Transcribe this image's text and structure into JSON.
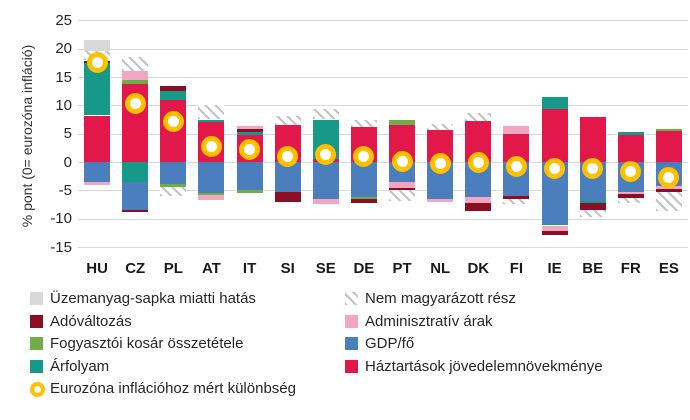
{
  "chart_data": {
    "type": "stacked-bar-with-marker",
    "title": "",
    "ylabel": "% pont (0= eurozóna infláció)",
    "xlabel": "",
    "ylim": [
      -15,
      25
    ],
    "yticks": [
      25,
      20,
      15,
      10,
      5,
      0,
      -5,
      -10,
      -15
    ],
    "grid": "horizontal-light-gray",
    "categories": [
      "HU",
      "CZ",
      "PL",
      "AT",
      "IT",
      "SI",
      "SE",
      "DE",
      "PT",
      "NL",
      "DK",
      "FI",
      "IE",
      "BE",
      "FR",
      "ES"
    ],
    "components": {
      "fuel_cap": {
        "label": "Üzemanyag-sapka miatti hatás",
        "color": "#d9d9d9",
        "style": "solid"
      },
      "unexplained": {
        "label": "Nem magyarázott rész",
        "color": "#c3c3c3",
        "style": "hatched"
      },
      "tax": {
        "label": "Adóváltozás",
        "color": "#8b0f24",
        "style": "solid"
      },
      "admin": {
        "label": "Adminisztratív árak",
        "color": "#f2a6c2",
        "style": "solid"
      },
      "basket": {
        "label": "Fogyasztói kosár összetétele",
        "color": "#70ad47",
        "style": "solid"
      },
      "gdp": {
        "label": "GDP/fő",
        "color": "#4a7ebc",
        "style": "solid"
      },
      "fx": {
        "label": "Árfolyam",
        "color": "#17998a",
        "style": "solid"
      },
      "income": {
        "label": "Háztartások jövedelemnövekménye",
        "color": "#e2184a",
        "style": "solid"
      },
      "diff": {
        "label": "Eurozóna inflációhoz mért különbség",
        "color": "#ffc000",
        "style": "ring-marker"
      }
    },
    "bars": [
      {
        "country": "HU",
        "diff": 17.6,
        "segments": [
          {
            "k": "income",
            "v": 8.2
          },
          {
            "k": "fx",
            "v": 9.3
          },
          {
            "k": "tax",
            "v": 0.4
          },
          {
            "k": "unexplained",
            "v": 1.6
          },
          {
            "k": "fuel_cap",
            "v": 2.1
          },
          {
            "k": "gdp",
            "v": -3.6
          },
          {
            "k": "admin",
            "v": -0.5
          }
        ]
      },
      {
        "country": "CZ",
        "diff": 10.4,
        "segments": [
          {
            "k": "income",
            "v": 13.8
          },
          {
            "k": "basket",
            "v": 0.7
          },
          {
            "k": "admin",
            "v": 1.6
          },
          {
            "k": "unexplained",
            "v": 2.5
          },
          {
            "k": "fx",
            "v": -3.6
          },
          {
            "k": "gdp",
            "v": -4.8
          },
          {
            "k": "tax",
            "v": -0.4
          }
        ]
      },
      {
        "country": "PL",
        "diff": 7.2,
        "segments": [
          {
            "k": "income",
            "v": 10.9
          },
          {
            "k": "fx",
            "v": 1.7
          },
          {
            "k": "tax",
            "v": 0.8
          },
          {
            "k": "gdp",
            "v": -3.9
          },
          {
            "k": "basket",
            "v": -0.5
          },
          {
            "k": "unexplained",
            "v": -1.6
          }
        ]
      },
      {
        "country": "AT",
        "diff": 2.8,
        "segments": [
          {
            "k": "income",
            "v": 7.1
          },
          {
            "k": "fx",
            "v": 0.4
          },
          {
            "k": "unexplained",
            "v": 2.5
          },
          {
            "k": "gdp",
            "v": -5.5
          },
          {
            "k": "basket",
            "v": -0.3
          },
          {
            "k": "admin",
            "v": -0.9
          }
        ]
      },
      {
        "country": "IT",
        "diff": 2.2,
        "segments": [
          {
            "k": "income",
            "v": 4.8
          },
          {
            "k": "fx",
            "v": 0.5
          },
          {
            "k": "tax",
            "v": 0.5
          },
          {
            "k": "admin",
            "v": 0.5
          },
          {
            "k": "gdp",
            "v": -5.0
          },
          {
            "k": "basket",
            "v": -0.4
          }
        ]
      },
      {
        "country": "SI",
        "diff": 1.0,
        "segments": [
          {
            "k": "income",
            "v": 6.6
          },
          {
            "k": "unexplained",
            "v": 1.6
          },
          {
            "k": "gdp",
            "v": -5.2
          },
          {
            "k": "tax",
            "v": -1.8
          }
        ]
      },
      {
        "country": "SE",
        "diff": 1.3,
        "segments": [
          {
            "k": "income",
            "v": 0.6
          },
          {
            "k": "fx",
            "v": 6.9
          },
          {
            "k": "unexplained",
            "v": 1.8
          },
          {
            "k": "gdp",
            "v": -6.6
          },
          {
            "k": "admin",
            "v": -0.9
          }
        ]
      },
      {
        "country": "DE",
        "diff": 1.0,
        "segments": [
          {
            "k": "income",
            "v": 6.1
          },
          {
            "k": "unexplained",
            "v": 1.4
          },
          {
            "k": "gdp",
            "v": -6.2
          },
          {
            "k": "basket",
            "v": -0.3
          },
          {
            "k": "tax",
            "v": -0.7
          }
        ]
      },
      {
        "country": "PT",
        "diff": 0.1,
        "segments": [
          {
            "k": "income",
            "v": 6.6
          },
          {
            "k": "basket",
            "v": 0.9
          },
          {
            "k": "gdp",
            "v": -3.6
          },
          {
            "k": "admin",
            "v": -1.0
          },
          {
            "k": "tax",
            "v": -0.3
          },
          {
            "k": "unexplained",
            "v": -2.0
          }
        ]
      },
      {
        "country": "NL",
        "diff": -0.2,
        "segments": [
          {
            "k": "income",
            "v": 5.7
          },
          {
            "k": "unexplained",
            "v": 1.0
          },
          {
            "k": "gdp",
            "v": -6.6
          },
          {
            "k": "admin",
            "v": -0.4
          }
        ]
      },
      {
        "country": "DK",
        "diff": 0.0,
        "segments": [
          {
            "k": "income",
            "v": 7.2
          },
          {
            "k": "unexplained",
            "v": 1.4
          },
          {
            "k": "gdp",
            "v": -6.2
          },
          {
            "k": "admin",
            "v": -1.1
          },
          {
            "k": "tax",
            "v": -1.4
          }
        ]
      },
      {
        "country": "FI",
        "diff": -0.8,
        "segments": [
          {
            "k": "income",
            "v": 5.0
          },
          {
            "k": "admin",
            "v": 1.3
          },
          {
            "k": "gdp",
            "v": -6.0
          },
          {
            "k": "tax",
            "v": -0.5
          },
          {
            "k": "unexplained",
            "v": -0.9
          }
        ]
      },
      {
        "country": "IE",
        "diff": -1.1,
        "segments": [
          {
            "k": "income",
            "v": 9.3
          },
          {
            "k": "fx",
            "v": 2.1
          },
          {
            "k": "gdp",
            "v": -10.9
          },
          {
            "k": "fx",
            "v": -0.3
          },
          {
            "k": "admin",
            "v": -0.9
          },
          {
            "k": "tax",
            "v": -0.7
          }
        ]
      },
      {
        "country": "BE",
        "diff": -1.2,
        "segments": [
          {
            "k": "income",
            "v": 8.0
          },
          {
            "k": "gdp",
            "v": -6.9
          },
          {
            "k": "fx",
            "v": -0.3
          },
          {
            "k": "tax",
            "v": -1.3
          },
          {
            "k": "unexplained",
            "v": -1.2
          }
        ]
      },
      {
        "country": "FR",
        "diff": -1.6,
        "segments": [
          {
            "k": "income",
            "v": 4.8
          },
          {
            "k": "fx",
            "v": 0.5
          },
          {
            "k": "gdp",
            "v": -5.3
          },
          {
            "k": "admin",
            "v": -0.4
          },
          {
            "k": "tax",
            "v": -0.6
          },
          {
            "k": "unexplained",
            "v": -1.0
          }
        ]
      },
      {
        "country": "ES",
        "diff": -2.8,
        "segments": [
          {
            "k": "income",
            "v": 5.4
          },
          {
            "k": "basket",
            "v": 0.5
          },
          {
            "k": "gdp",
            "v": -4.2
          },
          {
            "k": "admin",
            "v": -0.6
          },
          {
            "k": "tax",
            "v": -0.5
          },
          {
            "k": "unexplained",
            "v": -3.3
          }
        ]
      }
    ],
    "legend": {
      "position": "bottom-two-columns",
      "column1": [
        "fuel_cap",
        "tax",
        "basket",
        "fx",
        "diff"
      ],
      "column2": [
        "unexplained",
        "admin",
        "gdp",
        "income"
      ]
    }
  }
}
